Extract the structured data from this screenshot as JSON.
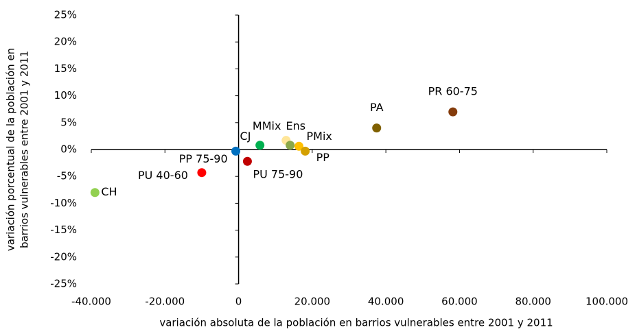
{
  "chart_data": {
    "type": "scatter",
    "xlabel": "variación absoluta de la población en barrios vulnerables entre 2001 y 2011",
    "ylabel": [
      "variación porcentual de la población en",
      "barrios vulnerables entre 2001 y 2011"
    ],
    "xlim": [
      -40000,
      100000
    ],
    "xticks": [
      {
        "value": -40000,
        "label": "-40.000"
      },
      {
        "value": -20000,
        "label": "-20.000"
      },
      0,
      {
        "value": 20000,
        "label": "20.000"
      },
      {
        "value": 40000,
        "label": "40.000"
      },
      {
        "value": 60000,
        "label": "60.000"
      },
      {
        "value": 80000,
        "label": "80.000"
      },
      {
        "value": 100000,
        "label": "100.000"
      }
    ],
    "ylim": [
      -25,
      25
    ],
    "yticks": [
      {
        "value": -25,
        "label": "-25%"
      },
      {
        "value": -20,
        "label": "-20%"
      },
      {
        "value": -15,
        "label": "-15%"
      },
      {
        "value": -10,
        "label": "-10%"
      },
      {
        "value": -5,
        "label": "-5%"
      },
      {
        "value": 0,
        "label": "0%"
      },
      {
        "value": 5,
        "label": "5%"
      },
      {
        "value": 10,
        "label": "10%"
      },
      {
        "value": 15,
        "label": "15%"
      },
      {
        "value": 20,
        "label": "20%"
      },
      {
        "value": 25,
        "label": "25%"
      }
    ],
    "grid": false,
    "series": [
      {
        "name": "CH",
        "color": "#92d050",
        "x": [
          -39000
        ],
        "values": [
          -8
        ]
      },
      {
        "name": "PU 40-60",
        "color": "#ff0000",
        "x": [
          -10000
        ],
        "values": [
          -4.3
        ]
      },
      {
        "name": "CJ",
        "color": "#0070c0",
        "x": [
          -750
        ],
        "values": [
          -0.3
        ]
      },
      {
        "name": "PU 75-90",
        "color": "#c00000",
        "x": [
          2400
        ],
        "values": [
          -2.2
        ]
      },
      {
        "name": "MMix",
        "color": "#00b050",
        "x": [
          5800
        ],
        "values": [
          0.8
        ]
      },
      {
        "name": "Ens",
        "color": "#ffe699",
        "x": [
          12900
        ],
        "values": [
          1.7
        ]
      },
      {
        "name": "PP 75-90",
        "color": "#8aa84a",
        "x": [
          14000
        ],
        "values": [
          0.8
        ]
      },
      {
        "name": "PMix",
        "color": "#ffc000",
        "x": [
          16400
        ],
        "values": [
          0.6
        ]
      },
      {
        "name": "PP",
        "color": "#d4a000",
        "x": [
          18100
        ],
        "values": [
          -0.3
        ]
      },
      {
        "name": "PA",
        "color": "#7f6000",
        "x": [
          37500
        ],
        "values": [
          4
        ]
      },
      {
        "name": "PR 60-75",
        "color": "#843c0c",
        "x": [
          58200
        ],
        "values": [
          7
        ]
      }
    ]
  }
}
